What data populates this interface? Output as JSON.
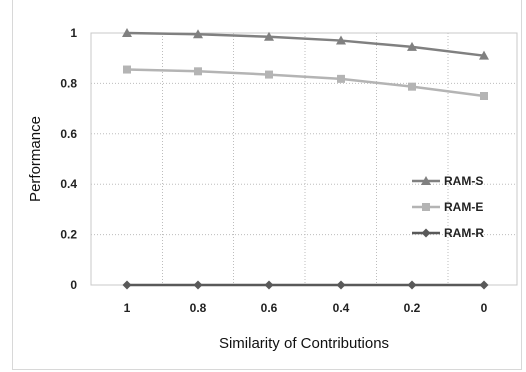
{
  "chart_data": {
    "type": "line",
    "xlabel": "Similarity of Contributions",
    "ylabel": "Performance",
    "categories": [
      "1",
      "0.8",
      "0.6",
      "0.4",
      "0.2",
      "0"
    ],
    "yticks": [
      "0",
      "0.2",
      "0.4",
      "0.6",
      "0.8",
      "1"
    ],
    "ylim": [
      0,
      1
    ],
    "grid": "dotted, on",
    "legend": "right",
    "series": [
      {
        "name": "RAM-S",
        "values": [
          1.0,
          0.995,
          0.985,
          0.97,
          0.945,
          0.91
        ],
        "color": "#808080",
        "marker": "triangle"
      },
      {
        "name": "RAM-E",
        "values": [
          0.855,
          0.848,
          0.835,
          0.818,
          0.787,
          0.75
        ],
        "color": "#b4b4b4",
        "marker": "square"
      },
      {
        "name": "RAM-R",
        "values": [
          0,
          0,
          0,
          0,
          0,
          0
        ],
        "color": "#595959",
        "marker": "diamond"
      }
    ]
  }
}
